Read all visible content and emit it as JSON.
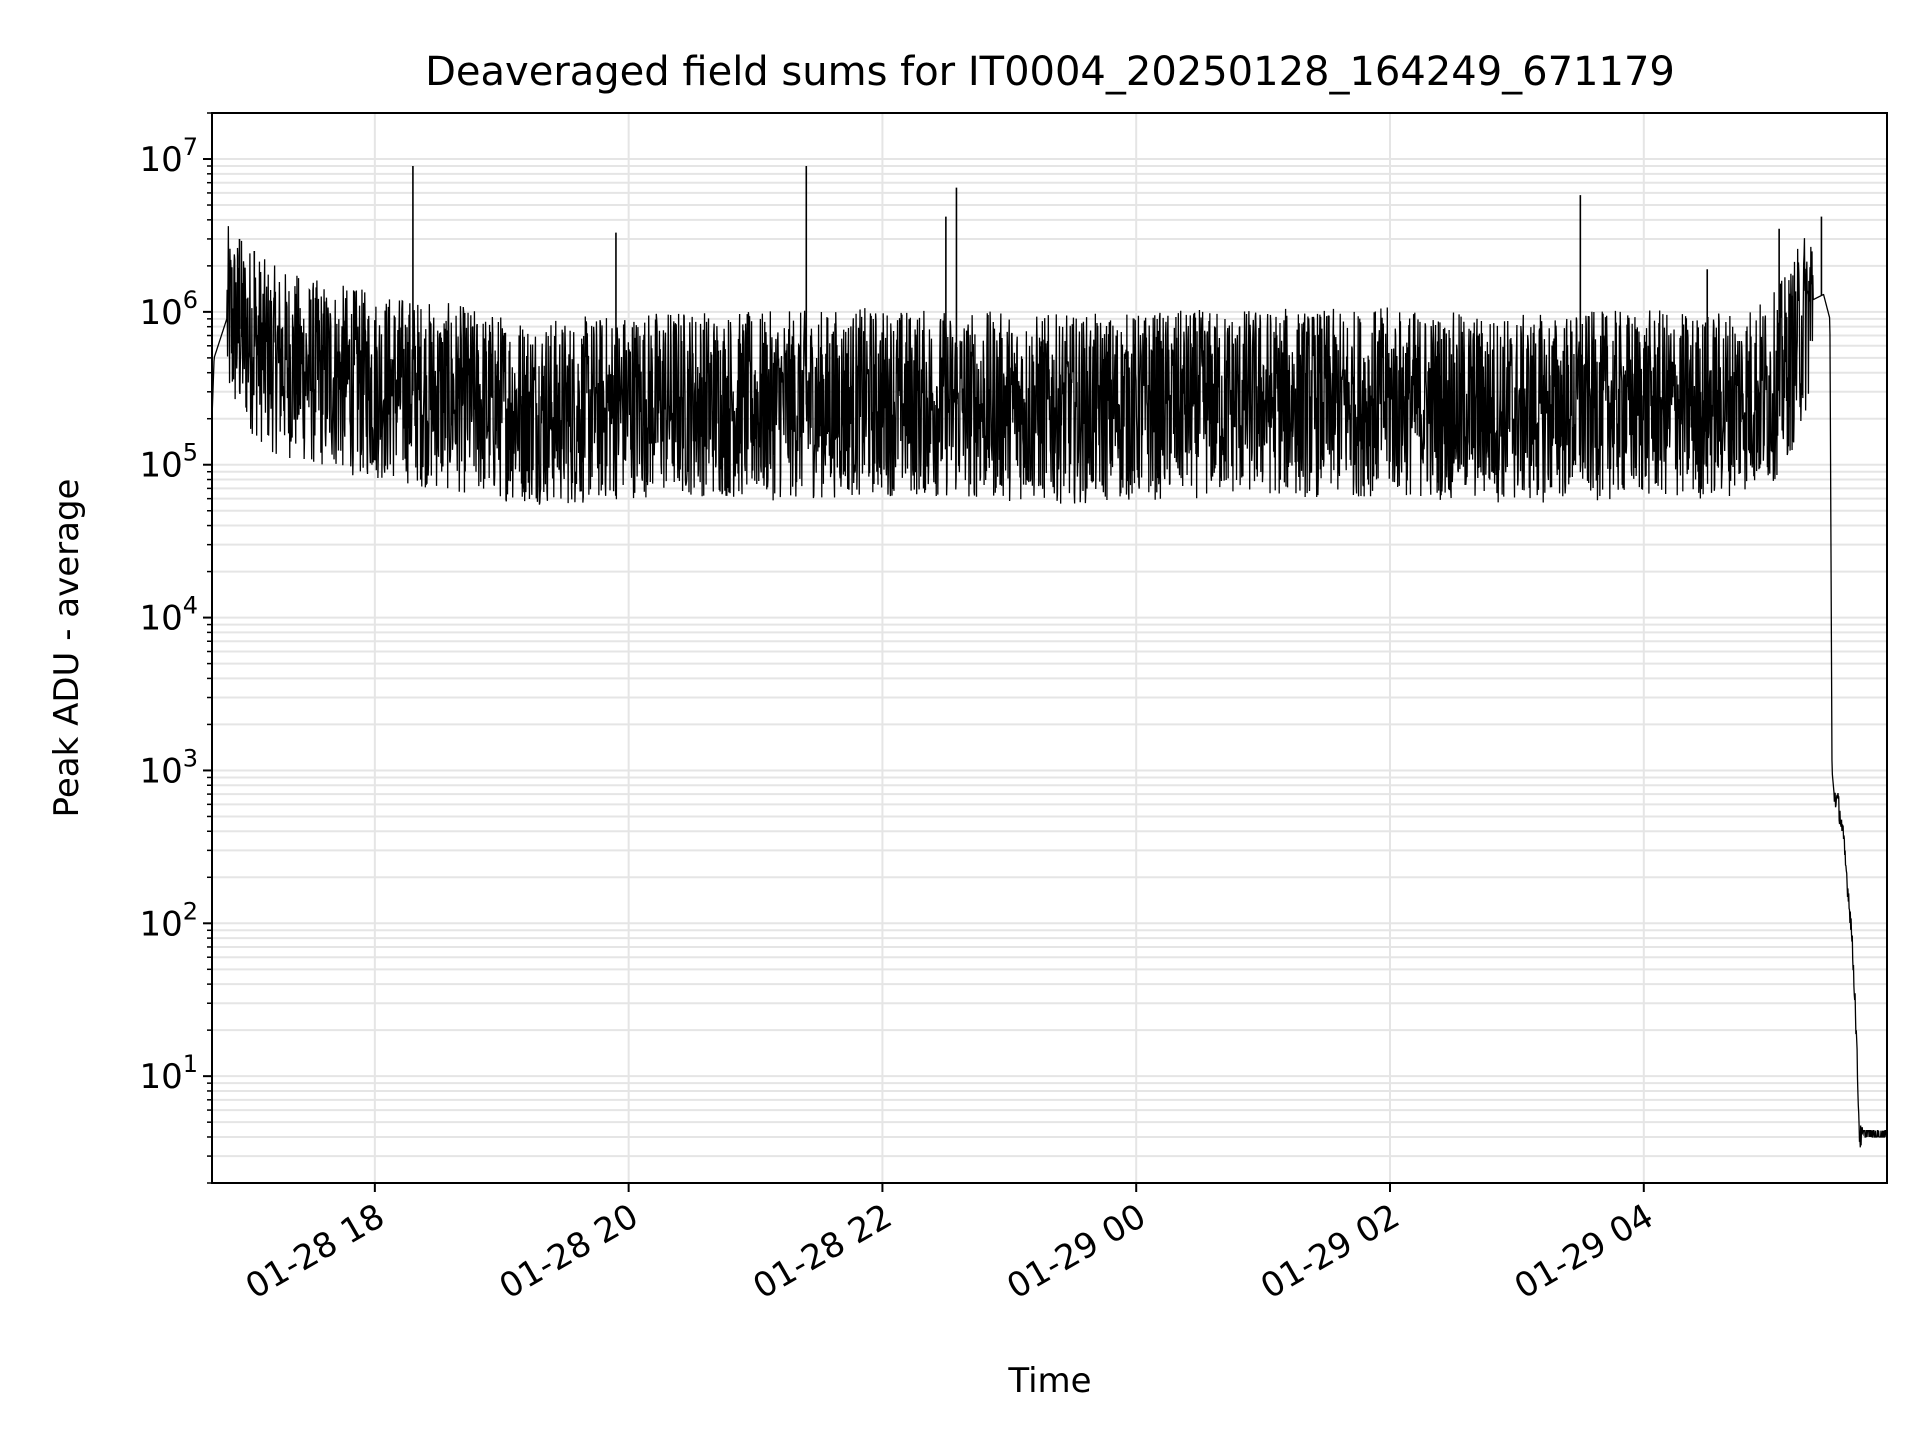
{
  "chart_data": {
    "type": "line",
    "title": "Deaveraged field sums for IT0004_20250128_164249_671179",
    "xlabel": "Time",
    "ylabel": "Peak ADU - average",
    "yscale": "log",
    "ylim": [
      2,
      20000000
    ],
    "xlim": [
      "01-28 16:43",
      "01-29 05:55"
    ],
    "x_ticks": [
      "01-28 18",
      "01-28 20",
      "01-28 22",
      "01-29 00",
      "01-29 02",
      "01-29 04"
    ],
    "y_ticks": [
      {
        "value": 10,
        "base": "10",
        "exp": "1"
      },
      {
        "value": 100,
        "base": "10",
        "exp": "2"
      },
      {
        "value": 1000,
        "base": "10",
        "exp": "3"
      },
      {
        "value": 10000,
        "base": "10",
        "exp": "4"
      },
      {
        "value": 100000,
        "base": "10",
        "exp": "5"
      },
      {
        "value": 1000000,
        "base": "10",
        "exp": "6"
      },
      {
        "value": 10000000,
        "base": "10",
        "exp": "7"
      }
    ],
    "grid": true,
    "line_color": "#000000",
    "grid_color": "#e5e5e5",
    "series": [
      {
        "x": [
          "01-28 16:43",
          "01-28 16:44",
          "01-28 16:50",
          "01-28 17:00",
          "01-28 17:10",
          "01-28 17:20",
          "01-28 17:30",
          "01-28 17:40",
          "01-28 17:50",
          "01-28 18:00",
          "01-28 18:10",
          "01-28 18:20",
          "01-28 18:30",
          "01-28 18:40",
          "01-28 18:50",
          "01-28 19:00",
          "01-28 19:15",
          "01-28 19:30",
          "01-28 19:45",
          "01-28 20:00",
          "01-28 20:30",
          "01-28 21:00",
          "01-28 21:30",
          "01-28 22:00",
          "01-28 22:30",
          "01-28 23:00",
          "01-28 23:30",
          "01-29 00:00",
          "01-29 00:30",
          "01-29 01:00",
          "01-29 01:30",
          "01-29 02:00",
          "01-29 02:30",
          "01-29 03:00",
          "01-29 03:30",
          "01-29 04:00",
          "01-29 04:30",
          "01-29 05:00",
          "01-29 05:10",
          "01-29 05:20",
          "01-29 05:25",
          "01-29 05:28",
          "01-29 05:29",
          "01-29 05:30",
          "01-29 05:32",
          "01-29 05:34",
          "01-29 05:36",
          "01-29 05:38",
          "01-29 05:40",
          "01-29 05:42",
          "01-29 05:44",
          "01-29 05:55"
        ],
        "y": [
          200000,
          500000,
          900000,
          700000,
          500000,
          450000,
          400000,
          380000,
          350000,
          330000,
          320000,
          300000,
          280000,
          270000,
          250000,
          240000,
          230000,
          220000,
          230000,
          250000,
          260000,
          240000,
          250000,
          260000,
          250000,
          240000,
          230000,
          240000,
          250000,
          260000,
          250000,
          260000,
          240000,
          230000,
          240000,
          250000,
          240000,
          300000,
          500000,
          1200000,
          1300000,
          900000,
          1000,
          700,
          600,
          400,
          200,
          100,
          30,
          4,
          4,
          4
        ]
      }
    ],
    "peaks": [
      {
        "x": "01-28 16:56",
        "y": 3000000
      },
      {
        "x": "01-28 17:03",
        "y": 2500000
      },
      {
        "x": "01-28 18:18",
        "y": 9000000
      },
      {
        "x": "01-28 19:54",
        "y": 3300000
      },
      {
        "x": "01-28 21:24",
        "y": 9000000
      },
      {
        "x": "01-28 22:30",
        "y": 4200000
      },
      {
        "x": "01-28 22:35",
        "y": 6500000
      },
      {
        "x": "01-29 03:30",
        "y": 5800000
      },
      {
        "x": "01-29 04:30",
        "y": 1900000
      },
      {
        "x": "01-29 05:04",
        "y": 3500000
      },
      {
        "x": "01-29 05:24",
        "y": 4200000
      }
    ]
  }
}
